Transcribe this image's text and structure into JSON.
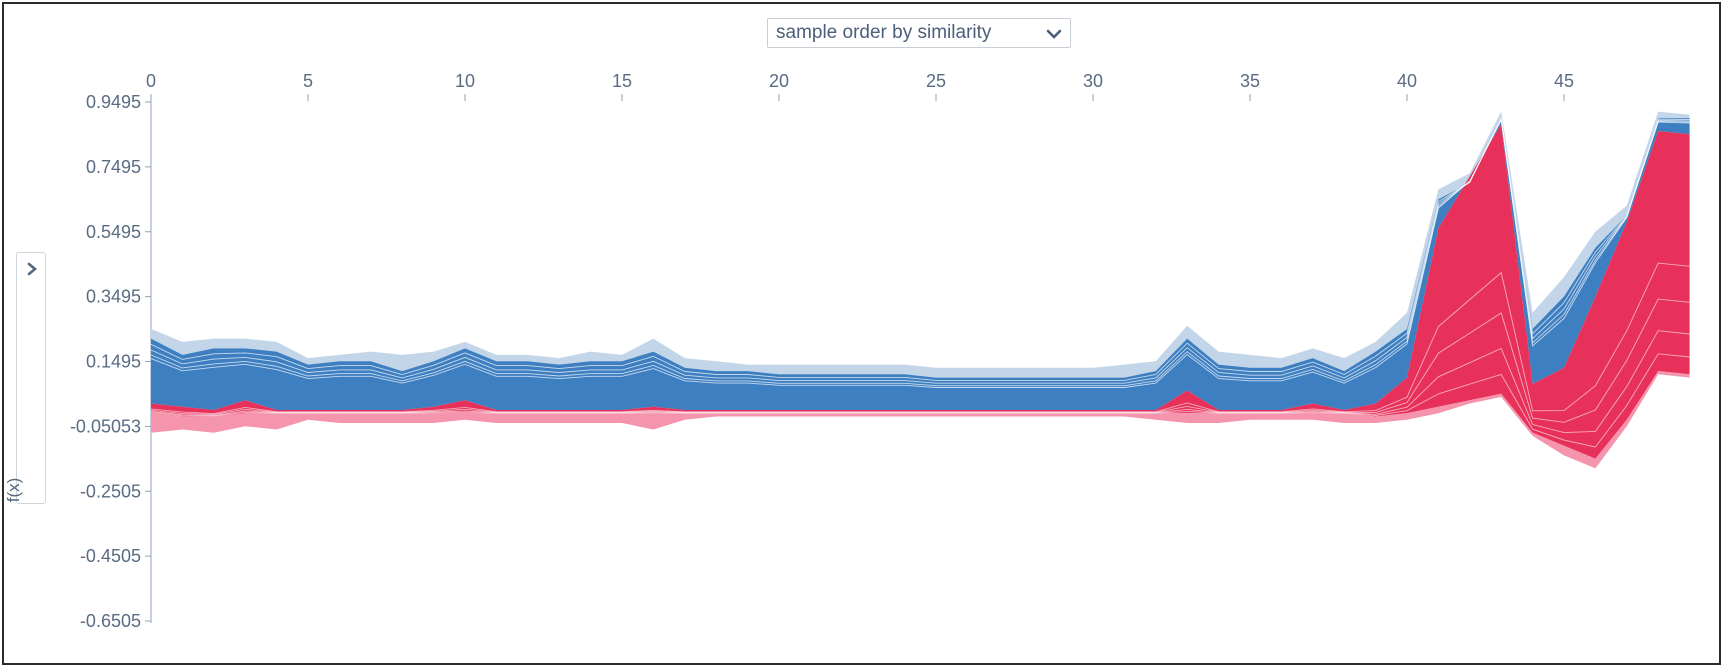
{
  "controls": {
    "order_select_label": "sample order by similarity",
    "order_select_icon": "chevron-down-icon",
    "side_toggle_icon": "chevron-right-icon"
  },
  "chart_data": {
    "type": "area",
    "title": "",
    "xlabel": "",
    "ylabel": "f(x)",
    "xlim": [
      0,
      49
    ],
    "ylim": [
      -0.6505,
      0.9495
    ],
    "x_ticks": [
      0,
      5,
      10,
      15,
      20,
      25,
      30,
      35,
      40,
      45
    ],
    "y_ticks": [
      "0.9495",
      "0.7495",
      "0.5495",
      "0.3495",
      "0.1495",
      "-0.05053",
      "-0.2505",
      "-0.4505",
      "-0.6505"
    ],
    "colors": {
      "positive": "#e8315a",
      "positive_light": "#f595ad",
      "negative": "#3e7fc1",
      "negative_light": "#c3d5e8"
    },
    "x": [
      0,
      1,
      2,
      3,
      4,
      5,
      6,
      7,
      8,
      9,
      10,
      11,
      12,
      13,
      14,
      15,
      16,
      17,
      18,
      19,
      20,
      21,
      22,
      23,
      24,
      25,
      26,
      27,
      28,
      29,
      30,
      31,
      32,
      33,
      34,
      35,
      36,
      37,
      38,
      39,
      40,
      41,
      42,
      43,
      44,
      45,
      46,
      47,
      48,
      49
    ],
    "base_line": [
      -0.01,
      -0.02,
      -0.02,
      -0.01,
      -0.01,
      -0.01,
      -0.01,
      -0.01,
      -0.01,
      -0.01,
      -0.01,
      -0.01,
      -0.01,
      -0.01,
      -0.01,
      -0.01,
      -0.01,
      -0.01,
      -0.01,
      -0.01,
      -0.01,
      -0.01,
      -0.01,
      -0.01,
      -0.01,
      -0.01,
      -0.01,
      -0.01,
      -0.01,
      -0.01,
      -0.01,
      -0.01,
      -0.01,
      -0.01,
      -0.01,
      -0.01,
      -0.01,
      -0.01,
      -0.01,
      -0.02,
      -0.01,
      0.01,
      0.03,
      0.05,
      -0.07,
      -0.11,
      -0.15,
      -0.03,
      0.12,
      0.11
    ],
    "positive_top": [
      0.02,
      0.01,
      0.0,
      0.03,
      0.0,
      0.0,
      0.0,
      0.0,
      0.0,
      0.01,
      0.03,
      0.0,
      0.0,
      0.0,
      0.0,
      0.0,
      0.01,
      0.0,
      0.0,
      0.0,
      0.0,
      0.0,
      0.0,
      0.0,
      0.0,
      0.0,
      0.0,
      0.0,
      0.0,
      0.0,
      0.0,
      0.0,
      0.0,
      0.06,
      0.0,
      0.0,
      0.0,
      0.02,
      0.0,
      0.02,
      0.1,
      0.56,
      0.72,
      0.88,
      0.08,
      0.13,
      0.35,
      0.58,
      0.86,
      0.85
    ],
    "negative_top": [
      0.22,
      0.17,
      0.19,
      0.19,
      0.18,
      0.14,
      0.15,
      0.15,
      0.12,
      0.15,
      0.19,
      0.15,
      0.15,
      0.14,
      0.15,
      0.15,
      0.18,
      0.13,
      0.12,
      0.12,
      0.11,
      0.11,
      0.11,
      0.11,
      0.11,
      0.1,
      0.1,
      0.1,
      0.1,
      0.1,
      0.1,
      0.1,
      0.12,
      0.22,
      0.14,
      0.13,
      0.13,
      0.16,
      0.12,
      0.18,
      0.25,
      0.65,
      0.7,
      0.9,
      0.25,
      0.35,
      0.5,
      0.6,
      0.9,
      0.9
    ],
    "envelope_top": [
      0.25,
      0.21,
      0.22,
      0.22,
      0.21,
      0.16,
      0.17,
      0.18,
      0.17,
      0.18,
      0.21,
      0.17,
      0.17,
      0.16,
      0.18,
      0.17,
      0.22,
      0.16,
      0.15,
      0.14,
      0.14,
      0.14,
      0.14,
      0.14,
      0.14,
      0.13,
      0.13,
      0.13,
      0.13,
      0.13,
      0.13,
      0.14,
      0.15,
      0.26,
      0.18,
      0.17,
      0.16,
      0.19,
      0.16,
      0.21,
      0.3,
      0.68,
      0.73,
      0.92,
      0.3,
      0.41,
      0.55,
      0.63,
      0.92,
      0.91
    ],
    "envelope_bottom": [
      -0.07,
      -0.06,
      -0.07,
      -0.05,
      -0.06,
      -0.03,
      -0.04,
      -0.04,
      -0.04,
      -0.04,
      -0.03,
      -0.04,
      -0.04,
      -0.04,
      -0.04,
      -0.04,
      -0.06,
      -0.03,
      -0.02,
      -0.02,
      -0.02,
      -0.02,
      -0.02,
      -0.02,
      -0.02,
      -0.02,
      -0.02,
      -0.02,
      -0.02,
      -0.02,
      -0.02,
      -0.02,
      -0.03,
      -0.04,
      -0.04,
      -0.03,
      -0.03,
      -0.03,
      -0.04,
      -0.04,
      -0.03,
      -0.01,
      0.02,
      0.04,
      -0.08,
      -0.14,
      -0.18,
      -0.05,
      0.11,
      0.1
    ]
  }
}
